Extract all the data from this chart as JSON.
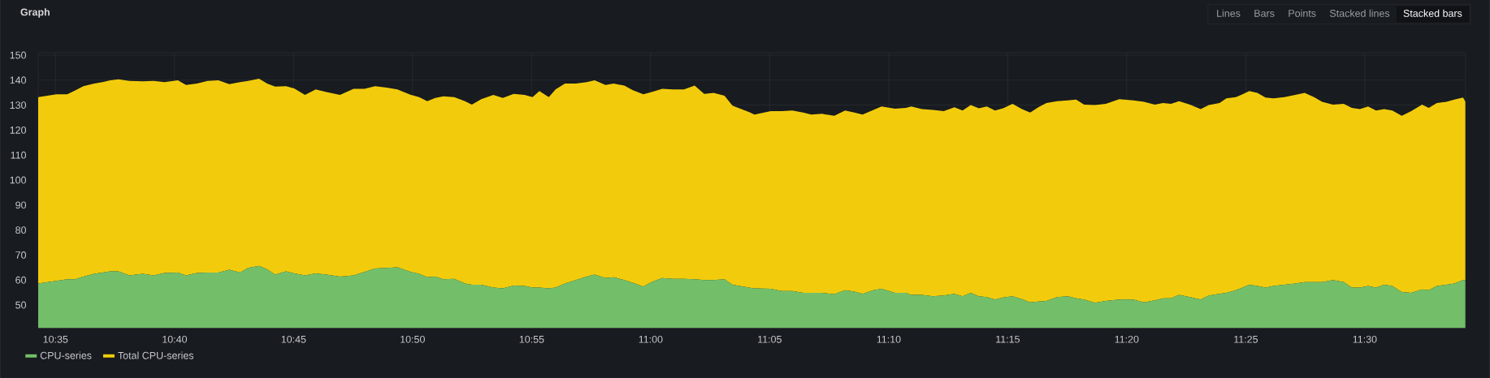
{
  "chart_data": {
    "type": "area",
    "stacked": true,
    "title": "Graph",
    "annotations": [
      "Lines",
      "Bars",
      "Points",
      "Stacked lines",
      "Stacked bars"
    ],
    "x": [
      10.5712,
      10.5839,
      10.5915,
      10.5971,
      10.6028,
      10.6104,
      10.6161,
      10.6217,
      10.6274,
      10.635,
      10.6444,
      10.652,
      10.6596,
      10.669,
      10.6747,
      10.6823,
      10.6898,
      10.6974,
      10.705,
      10.7125,
      10.7182,
      10.7258,
      10.7315,
      10.7371,
      10.7447,
      10.7504,
      10.758,
      10.7655,
      10.7731,
      10.7825,
      10.792,
      10.7996,
      10.8071,
      10.8152,
      10.8227,
      10.8322,
      10.8379,
      10.8436,
      10.8492,
      10.8549,
      10.8625,
      10.87,
      10.8748,
      10.8814,
      10.8899,
      10.8965,
      10.9041,
      10.9117,
      10.9173,
      10.9221,
      10.9287,
      10.9334,
      10.94,
      10.9476,
      10.9552,
      10.9608,
      10.9684,
      10.9741,
      10.9816,
      10.9873,
      10.9949,
      11.0006,
      11.0081,
      11.0157,
      11.0233,
      11.0308,
      11.0375,
      11.0441,
      11.0517,
      11.0573,
      11.0687,
      11.0727,
      11.0841,
      11.0917,
      11.0992,
      11.1068,
      11.1125,
      11.12,
      11.1286,
      11.1361,
      11.1427,
      11.1484,
      11.156,
      11.1617,
      11.1711,
      11.1787,
      11.1825,
      11.19,
      11.1976,
      11.2052,
      11.2127,
      11.2184,
      11.2241,
      11.2298,
      11.2354,
      11.2411,
      11.2468,
      11.2534,
      11.26,
      11.2657,
      11.2714,
      11.2771,
      11.2846,
      11.2922,
      11.2979,
      11.3035,
      11.3111,
      11.3187,
      11.3281,
      11.3379,
      11.3454,
      11.353,
      11.3587,
      11.3643,
      11.37,
      11.3776,
      11.3851,
      11.3908,
      11.3983,
      11.4031,
      11.4097,
      11.4144,
      11.4191,
      11.4248,
      11.4305,
      11.4361,
      11.4437,
      11.4513,
      11.4579,
      11.4645,
      11.4701,
      11.4777,
      11.4853,
      11.4909,
      11.4966,
      11.5023,
      11.5079,
      11.5136,
      11.5193,
      11.5259,
      11.5325,
      11.5401,
      11.5448,
      11.5505,
      11.5571,
      11.5627,
      11.5688,
      11.5705
    ],
    "series": [
      {
        "name": "CPU-series",
        "color": "#73bf69",
        "values": [
          58.6,
          59.7,
          60.3,
          60.3,
          61.4,
          62.5,
          63.0,
          63.5,
          63.5,
          61.9,
          62.5,
          61.9,
          62.8,
          63.0,
          61.9,
          62.8,
          63.0,
          63.0,
          64.1,
          63.0,
          64.9,
          65.7,
          64.3,
          62.2,
          63.5,
          62.7,
          61.9,
          62.7,
          62.2,
          61.4,
          61.9,
          63.2,
          64.6,
          64.9,
          65.1,
          63.2,
          62.5,
          61.1,
          61.4,
          60.3,
          60.5,
          58.6,
          58.1,
          58.1,
          57.0,
          56.7,
          57.8,
          57.6,
          57.0,
          57.0,
          56.7,
          57.0,
          58.6,
          60.0,
          61.4,
          62.2,
          60.8,
          61.1,
          60.0,
          58.9,
          57.4,
          59.2,
          60.8,
          60.5,
          60.5,
          60.3,
          60.0,
          60.0,
          60.3,
          58.1,
          57.0,
          56.7,
          56.5,
          55.6,
          55.6,
          54.9,
          54.9,
          54.9,
          54.3,
          55.9,
          55.4,
          54.5,
          55.9,
          56.5,
          54.9,
          54.9,
          54.1,
          54.1,
          53.5,
          53.8,
          54.5,
          53.5,
          54.9,
          53.5,
          53.2,
          52.2,
          53.0,
          53.5,
          52.4,
          51.1,
          51.4,
          51.6,
          53.2,
          53.5,
          52.7,
          52.2,
          50.9,
          51.6,
          52.2,
          52.2,
          51.1,
          51.9,
          52.7,
          52.7,
          54.1,
          53.2,
          52.2,
          53.8,
          54.5,
          54.9,
          55.9,
          57.0,
          58.1,
          57.6,
          57.0,
          57.6,
          58.1,
          58.6,
          59.2,
          59.2,
          59.2,
          60.0,
          59.2,
          57.0,
          57.0,
          57.6,
          57.0,
          58.1,
          57.6,
          55.2,
          54.9,
          56.3,
          55.9,
          57.6,
          58.1,
          58.6,
          60.0,
          60.0
        ]
      },
      {
        "name": "Total CPU-series",
        "color": "#f2cc0c",
        "values": [
          74.6,
          74.6,
          74.0,
          75.6,
          76.2,
          76.1,
          76.2,
          76.4,
          76.8,
          77.8,
          77.0,
          77.8,
          76.4,
          76.9,
          76.2,
          75.8,
          76.7,
          76.9,
          74.3,
          76.2,
          74.8,
          74.9,
          74.3,
          75.2,
          74.1,
          74.0,
          72.2,
          73.6,
          73.0,
          72.7,
          74.6,
          73.3,
          73.0,
          72.1,
          71.2,
          70.9,
          70.7,
          70.5,
          71.5,
          73.2,
          72.7,
          73.0,
          72.1,
          74.3,
          77.1,
          76.2,
          76.7,
          76.5,
          76.2,
          78.6,
          76.5,
          79.3,
          80.0,
          78.6,
          77.8,
          77.7,
          77.3,
          77.5,
          77.8,
          77.1,
          76.9,
          76.0,
          75.7,
          75.8,
          75.8,
          77.5,
          74.5,
          74.9,
          73.5,
          71.7,
          70.3,
          69.5,
          71.1,
          72.0,
          72.2,
          72.1,
          71.3,
          71.6,
          71.4,
          71.9,
          71.6,
          71.7,
          72.2,
          73.0,
          73.7,
          74.0,
          75.4,
          74.3,
          74.6,
          73.8,
          74.6,
          74.3,
          75.1,
          75.2,
          76.3,
          75.6,
          75.7,
          77.0,
          76.0,
          75.9,
          77.7,
          79.2,
          78.4,
          78.4,
          79.5,
          78.0,
          79.1,
          78.9,
          80.2,
          79.7,
          80.2,
          78.3,
          78.1,
          77.8,
          77.5,
          77.0,
          76.2,
          76.2,
          76.3,
          77.8,
          77.3,
          77.3,
          77.5,
          77.3,
          76.0,
          75.1,
          75.1,
          75.5,
          75.7,
          74.0,
          72.1,
          70.2,
          71.3,
          71.9,
          71.4,
          71.9,
          70.8,
          70.3,
          70.2,
          70.5,
          72.7,
          73.9,
          73.0,
          73.2,
          73.2,
          73.6,
          73.0,
          71.3
        ]
      }
    ],
    "xlim": [
      10.5712,
      11.5705
    ],
    "ylim": [
      40.8,
      151
    ],
    "xticks": [
      {
        "value": 10.5833,
        "label": "10:35"
      },
      {
        "value": 10.6667,
        "label": "10:40"
      },
      {
        "value": 10.75,
        "label": "10:45"
      },
      {
        "value": 10.8333,
        "label": "10:50"
      },
      {
        "value": 10.9167,
        "label": "10:55"
      },
      {
        "value": 11.0,
        "label": "11:00"
      },
      {
        "value": 11.0833,
        "label": "11:05"
      },
      {
        "value": 11.1667,
        "label": "11:10"
      },
      {
        "value": 11.25,
        "label": "11:15"
      },
      {
        "value": 11.3333,
        "label": "11:20"
      },
      {
        "value": 11.4167,
        "label": "11:25"
      },
      {
        "value": 11.5,
        "label": "11:30"
      }
    ],
    "yticks": [
      50,
      60,
      70,
      80,
      90,
      100,
      110,
      120,
      130,
      140,
      150
    ],
    "grid": true,
    "legend": "bottom left"
  }
}
